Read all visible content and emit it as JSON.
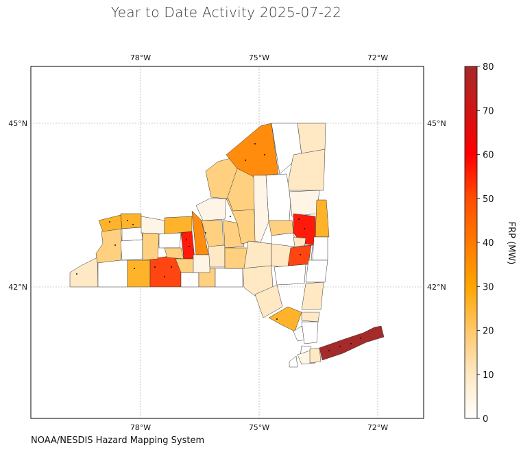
{
  "title": "Year to Date Activity 2025-07-22",
  "credit": "NOAA/NESDIS Hazard Mapping System",
  "map": {
    "lon_ticks": [
      "78°W",
      "75°W",
      "72°W"
    ],
    "lat_ticks": [
      "45°N",
      "42°N"
    ],
    "background": "#ffffff"
  },
  "colorbar": {
    "label": "FRP (MW)",
    "ticks": [
      "0",
      "10",
      "20",
      "30",
      "40",
      "50",
      "60",
      "70",
      "80"
    ],
    "range": [
      0,
      80
    ],
    "colors": [
      "#ffffff",
      "#ffe8c4",
      "#ffc86a",
      "#ffa500",
      "#ff7a00",
      "#ff4d00",
      "#ff0000",
      "#d01515",
      "#a52a2a"
    ]
  },
  "legend_values": {
    "suffolk": "#a52a2a",
    "high_red": "#ff1a0a",
    "orange_red": "#ff4510",
    "orange": "#ff8c0c",
    "amber": "#ffb32a",
    "light_orange": "#ffd080",
    "pale": "#ffe8c4",
    "very_pale": "#fff5e6",
    "white": "#ffffff"
  }
}
